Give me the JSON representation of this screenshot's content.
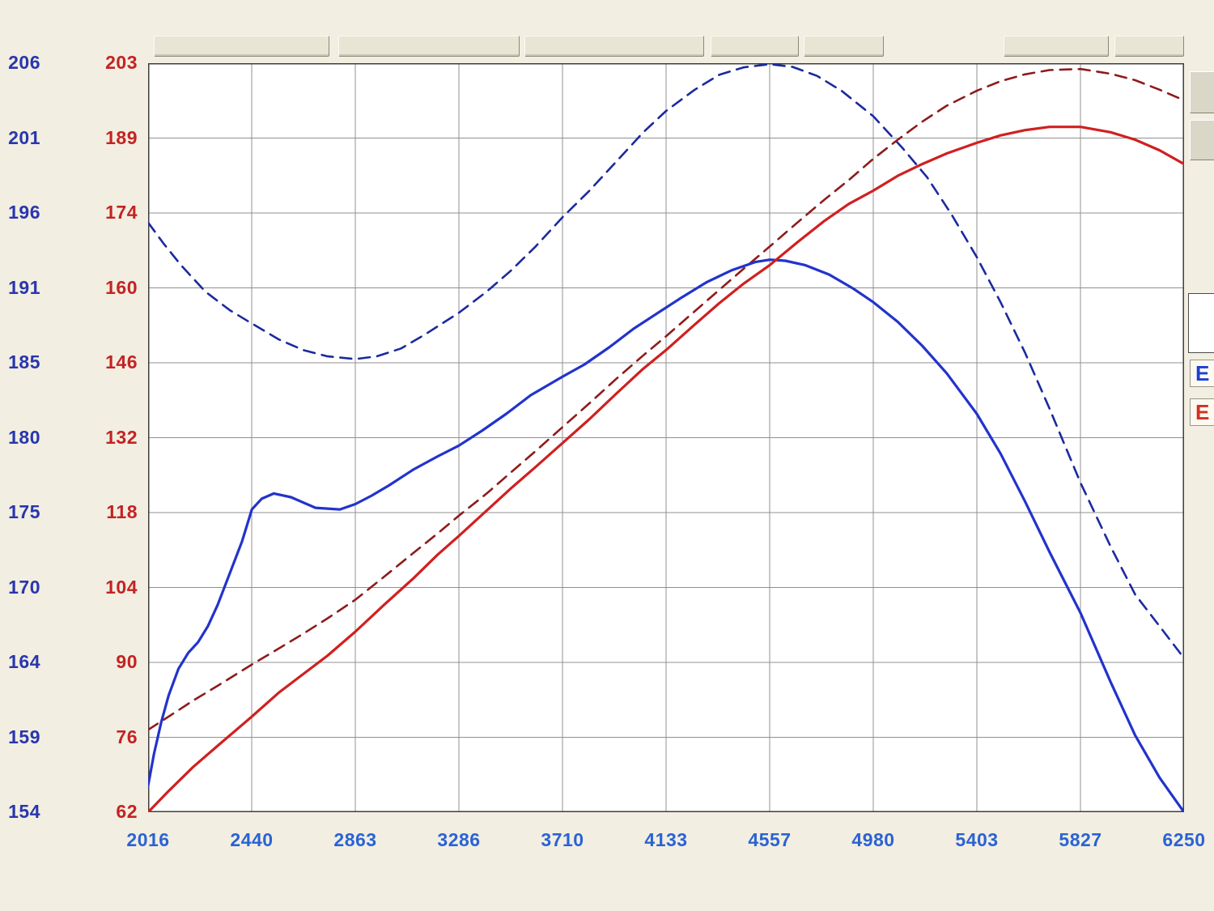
{
  "colors": {
    "background": "#f2eee1",
    "plot_background": "#ffffff",
    "grid": "#909090",
    "plot_border": "#3f3f3f",
    "axis_left_blue": "#2936ae",
    "axis_left_red": "#c32323",
    "axis_bottom": "#2a63d4",
    "e_blue": "#1d3ed6",
    "e_red": "#d23022"
  },
  "right_rail": {
    "e_blue": "E",
    "e_red": "E"
  },
  "chart_data": {
    "type": "line",
    "grid": true,
    "legend": "none",
    "x_axis": {
      "ticks": [
        2016,
        2440,
        2863,
        3286,
        3710,
        4133,
        4557,
        4980,
        5403,
        5827,
        6250
      ],
      "range": [
        2016,
        6250
      ]
    },
    "y_axis_blue": {
      "ticks": [
        206,
        201,
        196,
        191,
        185,
        180,
        175,
        170,
        164,
        159,
        154
      ]
    },
    "y_axis_red": {
      "ticks": [
        203,
        189,
        174,
        160,
        146,
        132,
        118,
        104,
        90,
        76,
        62
      ]
    },
    "y_scale": {
      "range": [
        62,
        203
      ]
    },
    "series": [
      {
        "name": "blue-dashed",
        "color": "#1b2a9e",
        "dashed": true,
        "points": [
          [
            2016,
            173
          ],
          [
            2080,
            169
          ],
          [
            2150,
            165
          ],
          [
            2250,
            160
          ],
          [
            2350,
            156.5
          ],
          [
            2440,
            154
          ],
          [
            2550,
            151
          ],
          [
            2650,
            149
          ],
          [
            2750,
            147.8
          ],
          [
            2863,
            147.3
          ],
          [
            2950,
            147.8
          ],
          [
            3050,
            149.3
          ],
          [
            3150,
            152
          ],
          [
            3286,
            156
          ],
          [
            3400,
            160
          ],
          [
            3500,
            164
          ],
          [
            3600,
            168.5
          ],
          [
            3710,
            174
          ],
          [
            3820,
            179
          ],
          [
            3930,
            184.5
          ],
          [
            4040,
            190
          ],
          [
            4133,
            194
          ],
          [
            4250,
            198
          ],
          [
            4350,
            200.8
          ],
          [
            4450,
            202.2
          ],
          [
            4557,
            202.8
          ],
          [
            4650,
            202.3
          ],
          [
            4750,
            200.6
          ],
          [
            4850,
            197.8
          ],
          [
            4980,
            193
          ],
          [
            5100,
            187
          ],
          [
            5200,
            181.5
          ],
          [
            5300,
            174.5
          ],
          [
            5403,
            166.5
          ],
          [
            5500,
            158
          ],
          [
            5600,
            148.5
          ],
          [
            5700,
            138
          ],
          [
            5827,
            124
          ],
          [
            5950,
            112
          ],
          [
            6050,
            103
          ],
          [
            6150,
            97
          ],
          [
            6250,
            91
          ]
        ]
      },
      {
        "name": "red-dashed",
        "color": "#8e1b1b",
        "dashed": true,
        "points": [
          [
            2016,
            77.5
          ],
          [
            2100,
            80
          ],
          [
            2200,
            83
          ],
          [
            2300,
            85.8
          ],
          [
            2440,
            89.8
          ],
          [
            2550,
            92.8
          ],
          [
            2650,
            95.6
          ],
          [
            2750,
            98.5
          ],
          [
            2863,
            102
          ],
          [
            2980,
            106.3
          ],
          [
            3100,
            110.8
          ],
          [
            3200,
            114.5
          ],
          [
            3286,
            117.8
          ],
          [
            3400,
            122
          ],
          [
            3500,
            126
          ],
          [
            3600,
            130
          ],
          [
            3710,
            134.5
          ],
          [
            3820,
            139
          ],
          [
            3930,
            143.6
          ],
          [
            4040,
            148
          ],
          [
            4133,
            151.6
          ],
          [
            4250,
            156.3
          ],
          [
            4350,
            160.3
          ],
          [
            4450,
            164.3
          ],
          [
            4557,
            168.5
          ],
          [
            4670,
            173
          ],
          [
            4780,
            177.3
          ],
          [
            4880,
            181
          ],
          [
            4980,
            185
          ],
          [
            5080,
            188.6
          ],
          [
            5180,
            192
          ],
          [
            5280,
            195
          ],
          [
            5403,
            197.8
          ],
          [
            5500,
            199.6
          ],
          [
            5600,
            200.9
          ],
          [
            5700,
            201.7
          ],
          [
            5827,
            201.9
          ],
          [
            5950,
            201
          ],
          [
            6050,
            199.8
          ],
          [
            6150,
            198
          ],
          [
            6250,
            196
          ]
        ]
      },
      {
        "name": "blue-solid",
        "color": "#2233cc",
        "dashed": false,
        "points": [
          [
            2016,
            67
          ],
          [
            2040,
            73
          ],
          [
            2070,
            79
          ],
          [
            2100,
            84
          ],
          [
            2140,
            89
          ],
          [
            2180,
            92
          ],
          [
            2220,
            94
          ],
          [
            2260,
            97
          ],
          [
            2300,
            101
          ],
          [
            2350,
            107
          ],
          [
            2400,
            113
          ],
          [
            2440,
            119
          ],
          [
            2480,
            121
          ],
          [
            2530,
            122
          ],
          [
            2600,
            121.3
          ],
          [
            2700,
            119.3
          ],
          [
            2800,
            119
          ],
          [
            2863,
            120
          ],
          [
            2930,
            121.6
          ],
          [
            3000,
            123.5
          ],
          [
            3100,
            126.5
          ],
          [
            3200,
            129
          ],
          [
            3286,
            131
          ],
          [
            3380,
            133.8
          ],
          [
            3480,
            137
          ],
          [
            3580,
            140.5
          ],
          [
            3710,
            144
          ],
          [
            3800,
            146.3
          ],
          [
            3900,
            149.5
          ],
          [
            4000,
            153
          ],
          [
            4100,
            156
          ],
          [
            4200,
            159
          ],
          [
            4300,
            161.8
          ],
          [
            4400,
            164
          ],
          [
            4500,
            165.6
          ],
          [
            4557,
            166
          ],
          [
            4620,
            165.8
          ],
          [
            4700,
            165
          ],
          [
            4800,
            163.2
          ],
          [
            4900,
            160.5
          ],
          [
            4980,
            158
          ],
          [
            5080,
            154.3
          ],
          [
            5180,
            149.8
          ],
          [
            5280,
            144.6
          ],
          [
            5403,
            137
          ],
          [
            5500,
            129.5
          ],
          [
            5600,
            120.5
          ],
          [
            5700,
            111
          ],
          [
            5827,
            99.5
          ],
          [
            5950,
            86.5
          ],
          [
            6050,
            76.5
          ],
          [
            6150,
            68.5
          ],
          [
            6250,
            62
          ]
        ]
      },
      {
        "name": "red-solid",
        "color": "#d02020",
        "dashed": false,
        "points": [
          [
            2016,
            62
          ],
          [
            2100,
            66
          ],
          [
            2200,
            70.5
          ],
          [
            2300,
            74.5
          ],
          [
            2440,
            80
          ],
          [
            2550,
            84.5
          ],
          [
            2650,
            88
          ],
          [
            2750,
            91.5
          ],
          [
            2863,
            96
          ],
          [
            2980,
            101
          ],
          [
            3100,
            106
          ],
          [
            3200,
            110.5
          ],
          [
            3286,
            114
          ],
          [
            3400,
            118.8
          ],
          [
            3500,
            123
          ],
          [
            3600,
            127
          ],
          [
            3710,
            131.5
          ],
          [
            3820,
            136
          ],
          [
            3930,
            140.8
          ],
          [
            4040,
            145.5
          ],
          [
            4133,
            149
          ],
          [
            4250,
            153.8
          ],
          [
            4350,
            157.8
          ],
          [
            4450,
            161.5
          ],
          [
            4557,
            165
          ],
          [
            4670,
            169.3
          ],
          [
            4780,
            173.3
          ],
          [
            4880,
            176.5
          ],
          [
            4980,
            179
          ],
          [
            5080,
            181.8
          ],
          [
            5180,
            184
          ],
          [
            5280,
            186
          ],
          [
            5403,
            188
          ],
          [
            5500,
            189.4
          ],
          [
            5600,
            190.4
          ],
          [
            5700,
            191
          ],
          [
            5827,
            191
          ],
          [
            5950,
            190
          ],
          [
            6050,
            188.6
          ],
          [
            6150,
            186.6
          ],
          [
            6250,
            184
          ]
        ]
      }
    ]
  }
}
